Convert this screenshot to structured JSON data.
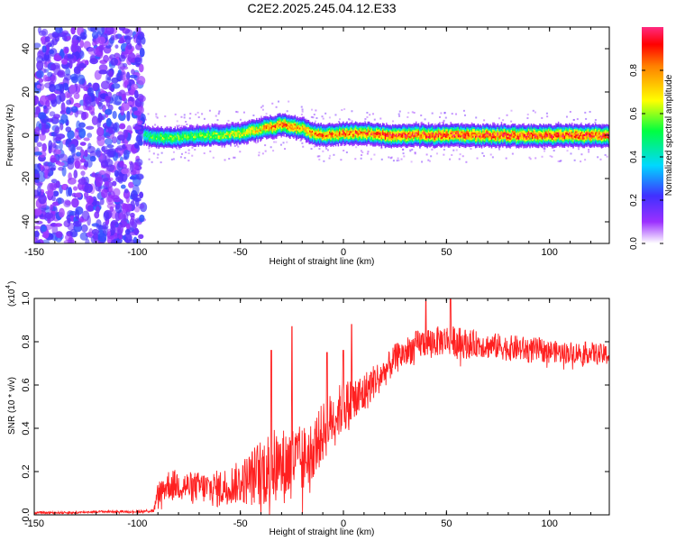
{
  "title": "C2E2.2025.245.04.12.E33",
  "chart_data": [
    {
      "type": "heatmap",
      "title": "C2E2.2025.245.04.12.E33",
      "xlabel": "Height of straight line (km)",
      "ylabel": "Frequency (Hz)",
      "xlim": [
        -150,
        129
      ],
      "ylim": [
        -50,
        50
      ],
      "xticks": [
        -150,
        -100,
        -50,
        0,
        50,
        100
      ],
      "yticks": [
        -40,
        -20,
        0,
        20,
        40
      ],
      "colorbar": {
        "label": "Normalized spectral amplitude",
        "range": [
          0,
          1
        ],
        "ticks": [
          0.0,
          0.2,
          0.4,
          0.6,
          0.8
        ]
      },
      "noise_region_km": [
        -150,
        -97
      ],
      "ridge": {
        "description": "narrow high-amplitude band near 0 Hz",
        "x": [
          -97,
          -90,
          -80,
          -70,
          -60,
          -50,
          -45,
          -40,
          -35,
          -30,
          -25,
          -20,
          -15,
          -10,
          0,
          10,
          20,
          30,
          40,
          50,
          60,
          70,
          80,
          90,
          100,
          110,
          120,
          129
        ],
        "frequency_hz": [
          0,
          -1,
          -1,
          0,
          0,
          1,
          2,
          3,
          4,
          5,
          4,
          3,
          1,
          0,
          1,
          1,
          0,
          0,
          0,
          0,
          0,
          0,
          0,
          0,
          0,
          0,
          0,
          0
        ],
        "amplitude": [
          0.5,
          0.6,
          0.6,
          0.6,
          0.65,
          0.7,
          0.75,
          0.8,
          0.85,
          0.9,
          0.85,
          0.8,
          0.85,
          0.85,
          0.9,
          0.9,
          0.95,
          0.95,
          0.95,
          0.95,
          0.95,
          0.95,
          0.95,
          0.95,
          0.95,
          0.95,
          0.95,
          0.95
        ]
      }
    },
    {
      "type": "line",
      "xlabel": "Height of straight line (km)",
      "ylabel": "SNR (10 * v/v)",
      "yscale_label": "(x10",
      "yscale_exp": "4",
      "xlim": [
        -150,
        129
      ],
      "ylim": [
        0,
        1
      ],
      "xticks": [
        -150,
        -100,
        -50,
        0,
        50,
        100
      ],
      "yticks": [
        0.0,
        0.2,
        0.4,
        0.6,
        0.8,
        1.0
      ],
      "series": [
        {
          "name": "SNR",
          "color": "#ff2020",
          "x": [
            -150,
            -140,
            -130,
            -120,
            -110,
            -100,
            -92,
            -90,
            -85,
            -80,
            -75,
            -70,
            -65,
            -60,
            -55,
            -50,
            -45,
            -40,
            -35,
            -30,
            -25,
            -20,
            -15,
            -10,
            -5,
            0,
            5,
            10,
            15,
            20,
            25,
            30,
            35,
            40,
            45,
            50,
            55,
            60,
            65,
            70,
            75,
            80,
            85,
            90,
            95,
            100,
            105,
            110,
            115,
            120,
            125,
            129
          ],
          "y": [
            0.01,
            0.01,
            0.01,
            0.015,
            0.015,
            0.015,
            0.02,
            0.1,
            0.14,
            0.14,
            0.13,
            0.13,
            0.12,
            0.12,
            0.14,
            0.15,
            0.17,
            0.2,
            0.22,
            0.22,
            0.25,
            0.25,
            0.3,
            0.38,
            0.45,
            0.5,
            0.52,
            0.56,
            0.62,
            0.66,
            0.72,
            0.75,
            0.78,
            0.8,
            0.8,
            0.81,
            0.8,
            0.79,
            0.79,
            0.78,
            0.78,
            0.77,
            0.77,
            0.76,
            0.76,
            0.76,
            0.75,
            0.75,
            0.75,
            0.75,
            0.74,
            0.74
          ],
          "spread": [
            0.005,
            0.005,
            0.005,
            0.005,
            0.005,
            0.005,
            0.01,
            0.05,
            0.07,
            0.07,
            0.07,
            0.07,
            0.08,
            0.09,
            0.09,
            0.1,
            0.13,
            0.16,
            0.18,
            0.18,
            0.17,
            0.16,
            0.14,
            0.14,
            0.13,
            0.12,
            0.12,
            0.1,
            0.08,
            0.07,
            0.07,
            0.07,
            0.07,
            0.07,
            0.07,
            0.07,
            0.07,
            0.07,
            0.06,
            0.06,
            0.06,
            0.06,
            0.06,
            0.06,
            0.06,
            0.05,
            0.05,
            0.05,
            0.05,
            0.05,
            0.05,
            0.05
          ],
          "spikes": [
            {
              "x": -35,
              "y": 0.76
            },
            {
              "x": -25,
              "y": 0.87
            },
            {
              "x": -8,
              "y": 0.75
            },
            {
              "x": 0,
              "y": 0.76
            },
            {
              "x": 4,
              "y": 0.88
            },
            {
              "x": 40,
              "y": 1.0
            },
            {
              "x": 52,
              "y": 1.0
            }
          ]
        }
      ]
    }
  ]
}
